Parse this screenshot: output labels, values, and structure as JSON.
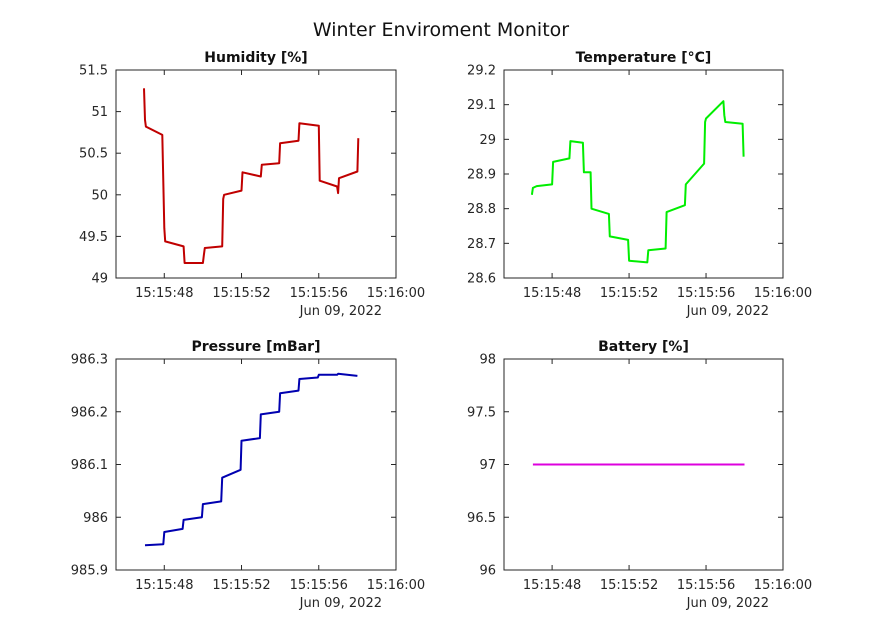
{
  "figure": {
    "title": "Winter Enviroment Monitor"
  },
  "chart_data": [
    {
      "type": "line",
      "title": "Humidity [%]",
      "xlabel": "",
      "ylabel": "",
      "color": "#c00000",
      "x_unit": "seconds after 15:15:00",
      "ylim": [
        49,
        51.5
      ],
      "yticks": [
        49,
        49.5,
        50,
        50.5,
        51,
        51.5
      ],
      "ytick_labels": [
        "49",
        "49.5",
        "50",
        "50.5",
        "51",
        "51.5"
      ],
      "xlim": [
        45.5,
        60
      ],
      "xticks": [
        48,
        52,
        56,
        60
      ],
      "xtick_labels": [
        "15:15:48",
        "15:15:52",
        "15:15:56",
        "15:16:00"
      ],
      "date_label": "Jun 09, 2022",
      "series": [
        {
          "x": [
            46.95,
            47.0,
            47.05,
            47.9,
            48.0,
            48.05,
            49.0,
            49.05,
            50.0,
            50.05,
            50.1,
            51.0,
            51.05,
            51.1,
            52.0,
            52.05,
            53.0,
            53.05,
            53.95,
            54.0,
            54.95,
            55.0,
            56.0,
            56.05,
            56.95,
            57.0,
            57.05,
            58.0,
            58.05
          ],
          "y": [
            51.28,
            50.9,
            50.82,
            50.72,
            49.6,
            49.44,
            49.38,
            49.18,
            49.18,
            49.28,
            49.36,
            49.38,
            49.95,
            50.0,
            50.05,
            50.27,
            50.22,
            50.36,
            50.38,
            50.62,
            50.65,
            50.86,
            50.83,
            50.17,
            50.1,
            50.02,
            50.2,
            50.28,
            50.68
          ]
        }
      ]
    },
    {
      "type": "line",
      "title": "Temperature [°C]",
      "xlabel": "",
      "ylabel": "",
      "color": "#00ee00",
      "x_unit": "seconds after 15:15:00",
      "ylim": [
        28.6,
        29.2
      ],
      "yticks": [
        28.6,
        28.7,
        28.8,
        28.9,
        29,
        29.1,
        29.2
      ],
      "ytick_labels": [
        "28.6",
        "28.7",
        "28.8",
        "28.9",
        "29",
        "29.1",
        "29.2"
      ],
      "xlim": [
        45.5,
        60
      ],
      "xticks": [
        48,
        52,
        56,
        60
      ],
      "xtick_labels": [
        "15:15:48",
        "15:15:52",
        "15:15:56",
        "15:16:00"
      ],
      "date_label": "Jun 09, 2022",
      "series": [
        {
          "x": [
            46.95,
            47.0,
            47.2,
            48.0,
            48.05,
            48.9,
            48.95,
            49.6,
            49.65,
            50.0,
            50.05,
            50.95,
            51.0,
            51.95,
            52.0,
            52.95,
            53.0,
            53.9,
            53.95,
            54.9,
            54.95,
            55.9,
            55.95,
            56.0,
            56.9,
            56.95,
            57.0,
            57.9,
            57.95
          ],
          "y": [
            28.84,
            28.86,
            28.865,
            28.87,
            28.935,
            28.945,
            28.995,
            28.99,
            28.905,
            28.905,
            28.8,
            28.785,
            28.72,
            28.71,
            28.65,
            28.645,
            28.68,
            28.685,
            28.79,
            28.81,
            28.87,
            28.93,
            29.05,
            29.06,
            29.11,
            29.07,
            29.05,
            29.045,
            28.95
          ]
        }
      ]
    },
    {
      "type": "line",
      "title": "Pressure [mBar]",
      "xlabel": "",
      "ylabel": "",
      "color": "#0000b0",
      "x_unit": "seconds after 15:15:00",
      "ylim": [
        985.9,
        986.3
      ],
      "yticks": [
        985.9,
        986,
        986.1,
        986.2,
        986.3
      ],
      "ytick_labels": [
        "985.9",
        "986",
        "986.1",
        "986.2",
        "986.3"
      ],
      "xlim": [
        45.5,
        60
      ],
      "xticks": [
        48,
        52,
        56,
        60
      ],
      "xtick_labels": [
        "15:15:48",
        "15:15:52",
        "15:15:56",
        "15:16:00"
      ],
      "date_label": "Jun 09, 2022",
      "series": [
        {
          "x": [
            47.0,
            47.95,
            48.0,
            48.95,
            49.0,
            49.95,
            50.0,
            50.95,
            51.0,
            51.95,
            52.0,
            52.95,
            53.0,
            53.95,
            54.0,
            54.95,
            55.0,
            55.95,
            56.0,
            56.95,
            57.0,
            58.0
          ],
          "y": [
            985.947,
            985.949,
            985.972,
            985.978,
            985.995,
            986.0,
            986.025,
            986.03,
            986.075,
            986.09,
            986.145,
            986.15,
            986.195,
            986.2,
            986.235,
            986.24,
            986.262,
            986.265,
            986.27,
            986.27,
            986.272,
            986.268
          ]
        }
      ]
    },
    {
      "type": "line",
      "title": "Battery [%]",
      "xlabel": "",
      "ylabel": "",
      "color": "#dd00dd",
      "x_unit": "seconds after 15:15:00",
      "ylim": [
        96,
        98
      ],
      "yticks": [
        96,
        96.5,
        97,
        97.5,
        98
      ],
      "ytick_labels": [
        "96",
        "96.5",
        "97",
        "97.5",
        "98"
      ],
      "xlim": [
        45.5,
        60
      ],
      "xticks": [
        48,
        52,
        56,
        60
      ],
      "xtick_labels": [
        "15:15:48",
        "15:15:52",
        "15:15:56",
        "15:16:00"
      ],
      "date_label": "Jun 09, 2022",
      "series": [
        {
          "x": [
            47.0,
            58.0
          ],
          "y": [
            97,
            97
          ]
        }
      ]
    }
  ]
}
